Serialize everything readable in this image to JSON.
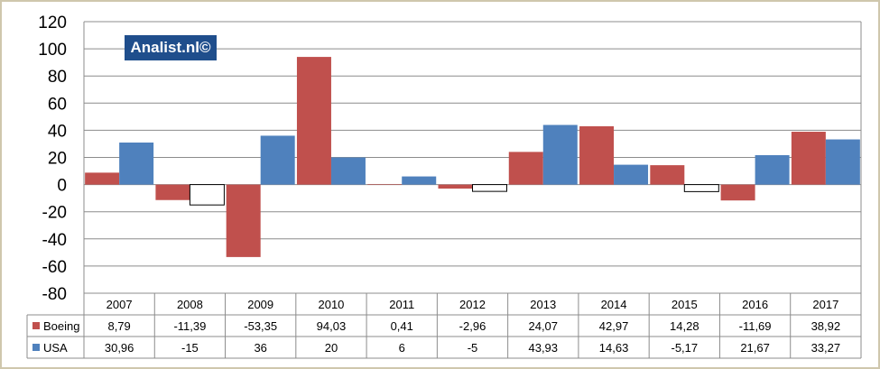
{
  "watermark": "Analist.nl©",
  "colors": {
    "Boeing": "#c0504d",
    "USA": "#4f81bd",
    "negative_fill": "#ffffff"
  },
  "chart_data": {
    "type": "bar",
    "categories": [
      "2007",
      "2008",
      "2009",
      "2010",
      "2011",
      "2012",
      "2013",
      "2014",
      "2015",
      "2016",
      "2017"
    ],
    "series": [
      {
        "name": "Boeing",
        "values": [
          8.79,
          -11.39,
          -53.35,
          94.03,
          0.41,
          -2.96,
          24.07,
          42.97,
          14.28,
          -11.69,
          38.92
        ],
        "labels": [
          "8,79",
          "-11,39",
          "-53,35",
          "94,03",
          "0,41",
          "-2,96",
          "24,07",
          "42,97",
          "14,28",
          "-11,69",
          "38,92"
        ]
      },
      {
        "name": "USA",
        "values": [
          30.96,
          -15,
          36,
          20,
          6,
          -5,
          43.93,
          14.63,
          -5.17,
          21.67,
          33.27
        ],
        "labels": [
          "30,96",
          "-15",
          "36",
          "20",
          "6",
          "-5",
          "43,93",
          "14,63",
          "-5,17",
          "21,67",
          "33,27"
        ]
      }
    ],
    "ylim": [
      -80,
      120
    ],
    "yticks": [
      -80,
      -60,
      -40,
      -20,
      0,
      20,
      40,
      60,
      80,
      100,
      120
    ],
    "grid": true,
    "legend": "data table",
    "data_table": true
  }
}
